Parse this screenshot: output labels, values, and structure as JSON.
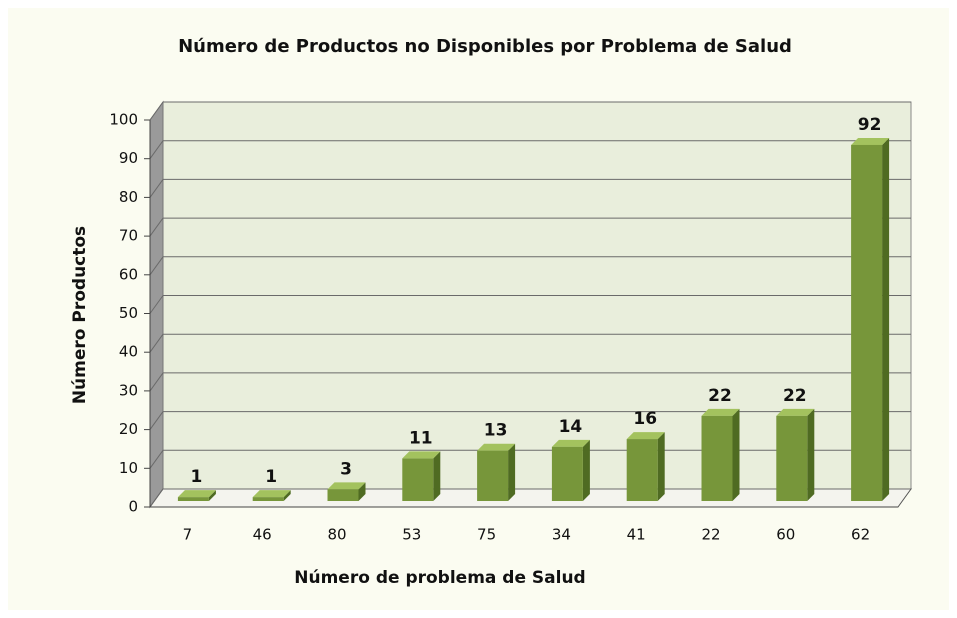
{
  "chart_data": {
    "type": "bar",
    "title": "Número de Productos no Disponibles por Problema de Salud",
    "x_label": "Número de problema de Salud",
    "y_label": "Número Productos",
    "categories": [
      "7",
      "46",
      "80",
      "53",
      "75",
      "34",
      "41",
      "22",
      "60",
      "62"
    ],
    "values": [
      1,
      1,
      3,
      11,
      13,
      14,
      16,
      22,
      22,
      92
    ],
    "color": "#77963a",
    "ylim": [
      0,
      100
    ],
    "yticks": [
      0,
      10,
      20,
      30,
      40,
      50,
      60,
      70,
      80,
      90,
      100
    ],
    "grid": true
  }
}
